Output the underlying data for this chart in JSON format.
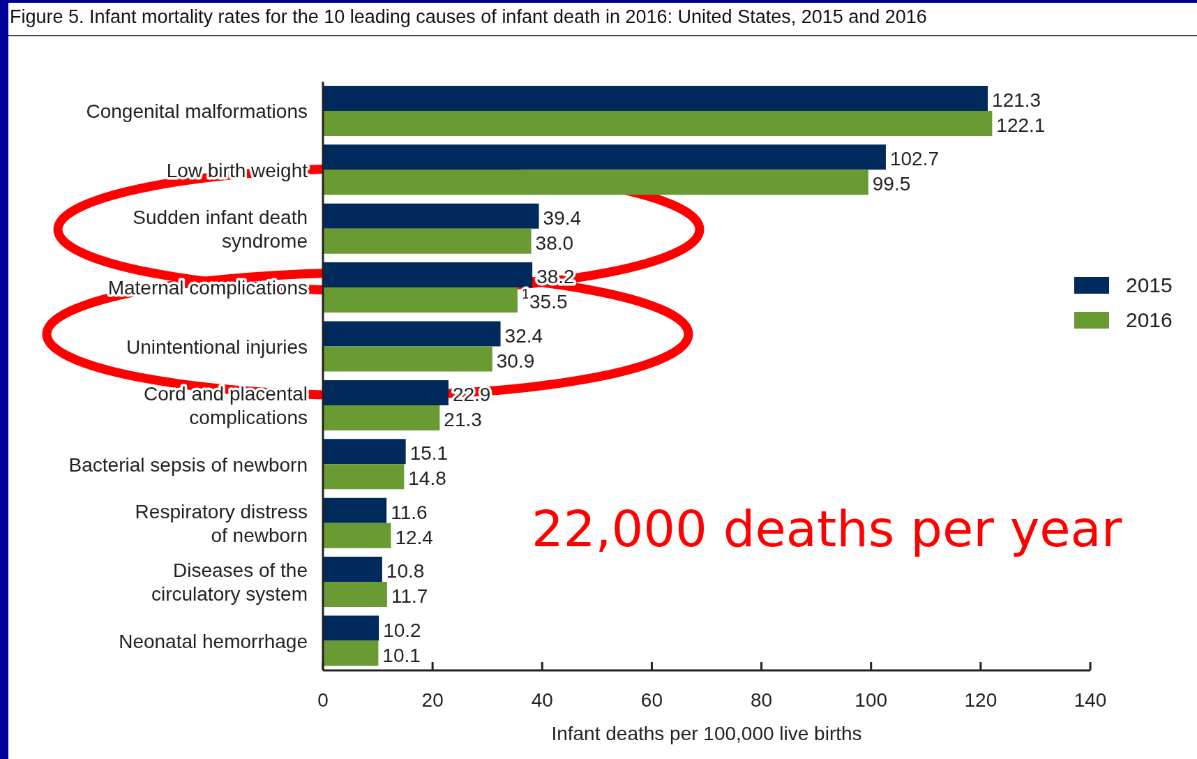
{
  "chart_data": {
    "type": "bar",
    "orientation": "horizontal",
    "title": "Figure 5. Infant mortality rates for the 10 leading causes of infant death in 2016: United States, 2015 and 2016",
    "xlabel": "Infant deaths per 100,000 live births",
    "categories": [
      "Congenital malformations",
      "Low birth weight",
      "Sudden infant death syndrome",
      "Maternal complications",
      "Unintentional injuries",
      "Cord and placental complications",
      "Bacterial sepsis of newborn",
      "Respiratory distress of newborn",
      "Diseases of the circulatory system",
      "Neonatal hemorrhage"
    ],
    "series": [
      {
        "name": "2015",
        "color": "#002a5c",
        "values": [
          121.3,
          102.7,
          39.4,
          38.2,
          32.4,
          22.9,
          15.1,
          11.6,
          10.8,
          10.2
        ],
        "value_labels": [
          "121.3",
          "102.7",
          "39.4",
          "38.2",
          "32.4",
          "22.9",
          "15.1",
          "11.6",
          "10.8",
          "10.2"
        ]
      },
      {
        "name": "2016",
        "color": "#6a9a32",
        "values": [
          122.1,
          99.5,
          38.0,
          35.5,
          30.9,
          21.3,
          14.8,
          12.4,
          11.7,
          10.1
        ],
        "value_labels": [
          "122.1",
          "99.5",
          "38.0",
          "$^{1}$35.5",
          "30.9",
          "21.3",
          "14.8",
          "12.4",
          "11.7",
          "10.1"
        ]
      }
    ],
    "xlim": [
      0,
      140
    ],
    "xticks": [
      0,
      20,
      40,
      60,
      80,
      100,
      120,
      140
    ],
    "legend": "right",
    "grid": false,
    "annotations": [
      "22,000 deaths per year"
    ]
  }
}
